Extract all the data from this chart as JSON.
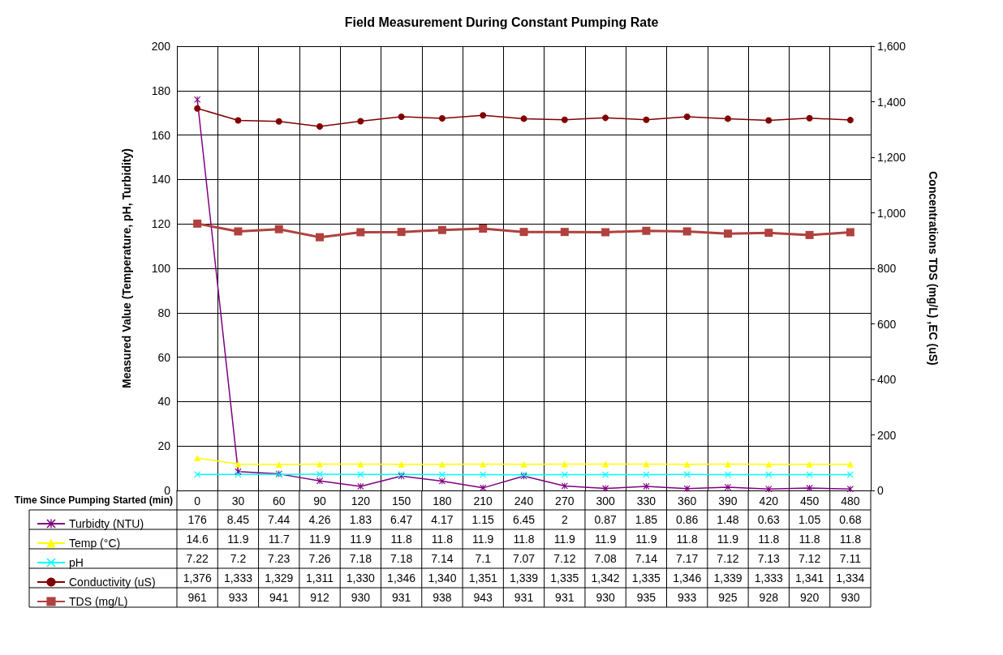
{
  "chart_data": {
    "type": "line",
    "title": "Field Measurement During Constant Pumping Rate",
    "xlabel": "Time Since Pumping Started (min)",
    "ylabel": "Measured Value (Temperature, pH, Turbidity)",
    "y2label": "Concentrations TDS (mg/L) ,EC (uS)",
    "categories": [
      "0",
      "30",
      "60",
      "90",
      "120",
      "150",
      "180",
      "210",
      "240",
      "270",
      "300",
      "330",
      "360",
      "390",
      "420",
      "450",
      "480"
    ],
    "ylim": [
      0,
      200
    ],
    "yticks": [
      0,
      20,
      40,
      60,
      80,
      100,
      120,
      140,
      160,
      180,
      200
    ],
    "y2lim": [
      0,
      1600
    ],
    "y2ticks": [
      0,
      200,
      400,
      600,
      800,
      {
        "value": 1000,
        "label": "1,000"
      },
      {
        "value": 1200,
        "label": "1,200"
      },
      {
        "value": 1400,
        "label": "1,400"
      },
      {
        "value": 1600,
        "label": "1,600"
      }
    ],
    "grid": true,
    "legend": "bottom left",
    "data_labels": true,
    "series": [
      {
        "name": "Turbidty (NTU)",
        "color": "#800080",
        "marker": "star",
        "values": [
          176,
          8.45,
          7.44,
          4.26,
          1.83,
          6.47,
          4.17,
          1.15,
          6.45,
          2,
          0.87,
          1.85,
          0.86,
          1.48,
          0.63,
          1.05,
          0.68
        ]
      },
      {
        "name": "Temp (°C)",
        "color": "#ffff00",
        "marker": "triangle",
        "values": [
          14.6,
          11.9,
          11.7,
          11.9,
          11.9,
          11.8,
          11.8,
          11.9,
          11.8,
          11.9,
          11.9,
          11.9,
          11.8,
          11.9,
          11.8,
          11.8,
          11.8
        ]
      },
      {
        "name": "pH",
        "color": "#00ffff",
        "marker": "cross",
        "values": [
          7.22,
          7.2,
          7.23,
          7.26,
          7.18,
          7.18,
          7.14,
          7.1,
          7.07,
          7.12,
          7.08,
          7.14,
          7.17,
          7.12,
          7.13,
          7.12,
          7.11
        ]
      },
      {
        "name": "Conductivity (uS)",
        "color": "#800000",
        "marker": "circle",
        "axis": "y2",
        "values": [
          1376,
          1333,
          1329,
          1311,
          1330,
          1346,
          1340,
          1351,
          1339,
          1335,
          1342,
          1335,
          1346,
          1339,
          1333,
          1341,
          1334
        ],
        "value_labels": [
          "1,376",
          "1,333",
          "1,329",
          "1,311",
          "1,330",
          "1,346",
          "1,340",
          "1,351",
          "1,339",
          "1,335",
          "1,342",
          "1,335",
          "1,346",
          "1,339",
          "1,333",
          "1,341",
          "1,334"
        ]
      },
      {
        "name": "TDS (mg/L)",
        "color": "#b0413e",
        "marker": "square",
        "axis": "y2",
        "values": [
          961,
          933,
          941,
          912,
          930,
          931,
          938,
          943,
          931,
          931,
          930,
          935,
          933,
          925,
          928,
          920,
          930
        ]
      }
    ]
  }
}
